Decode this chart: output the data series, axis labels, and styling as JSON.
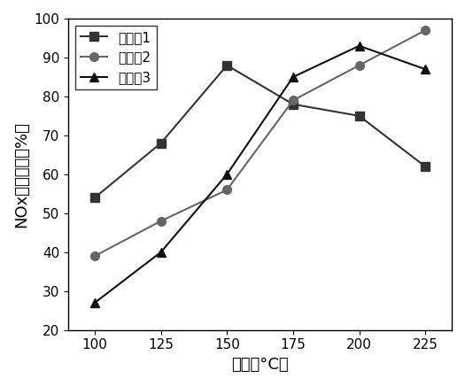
{
  "x": [
    100,
    125,
    150,
    175,
    200,
    225
  ],
  "series1": {
    "label": "实施例1",
    "y": [
      54,
      68,
      88,
      78,
      75,
      62
    ],
    "marker": "s",
    "color": "#333333",
    "linestyle": "-"
  },
  "series2": {
    "label": "实施例2",
    "y": [
      39,
      48,
      56,
      79,
      88,
      97
    ],
    "marker": "o",
    "color": "#666666",
    "linestyle": "-"
  },
  "series3": {
    "label": "实施例3",
    "y": [
      27,
      40,
      60,
      85,
      93,
      87
    ],
    "marker": "^",
    "color": "#111111",
    "linestyle": "-"
  },
  "xlabel": "温度（°C）",
  "ylabel": "NOx脱除效率（%）",
  "ylim": [
    20,
    100
  ],
  "xlim": [
    90,
    235
  ],
  "xticks": [
    100,
    125,
    150,
    175,
    200,
    225
  ],
  "yticks": [
    20,
    30,
    40,
    50,
    60,
    70,
    80,
    90,
    100
  ],
  "legend_loc": "upper left",
  "background_color": "#ffffff",
  "marker_size": 7,
  "linewidth": 1.5,
  "title_fontsize": 12,
  "label_fontsize": 13,
  "tick_fontsize": 11,
  "legend_fontsize": 11
}
